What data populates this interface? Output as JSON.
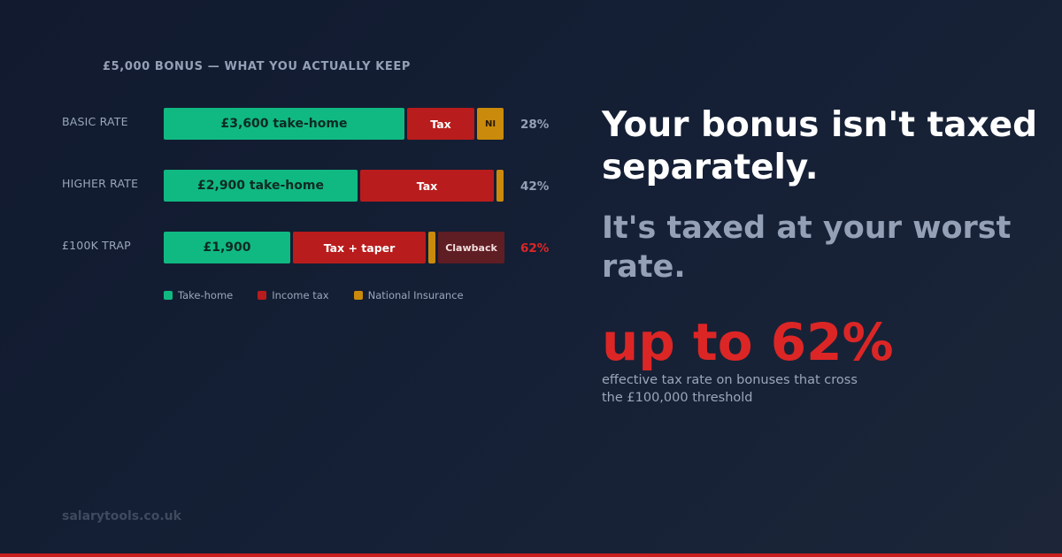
{
  "colors": {
    "take_home": "#10b981",
    "income_tax": "#b91c1c",
    "national_insurance": "#ca8a0b",
    "clawback": "#5f1d24",
    "accent_red": "#dc2626",
    "bottom_bar": "#c81e1e"
  },
  "chart_data": {
    "type": "bar",
    "orientation": "horizontal",
    "stacked": true,
    "title": "£5,000 BONUS — WHAT YOU ACTUALLY KEEP",
    "total": 5000,
    "rows": [
      {
        "label": "BASIC RATE",
        "rate": "28%",
        "rate_color": "#94a0b6",
        "segments": [
          {
            "kind": "take_home",
            "value": 3600,
            "label": "£3,600 take-home"
          },
          {
            "kind": "income_tax",
            "value": 1000,
            "label": "Tax"
          },
          {
            "kind": "national_insurance",
            "value": 400,
            "label": "NI"
          }
        ]
      },
      {
        "label": "HIGHER RATE",
        "rate": "42%",
        "rate_color": "#94a0b6",
        "segments": [
          {
            "kind": "take_home",
            "value": 2900,
            "label": "£2,900 take-home"
          },
          {
            "kind": "income_tax",
            "value": 2000,
            "label": "Tax"
          },
          {
            "kind": "national_insurance",
            "value": 100,
            "label": ""
          }
        ]
      },
      {
        "label": "£100K TRAP",
        "rate": "62%",
        "rate_color": "#dc2626",
        "segments": [
          {
            "kind": "take_home",
            "value": 1900,
            "label": "£1,900"
          },
          {
            "kind": "income_tax",
            "value": 2000,
            "label": "Tax + taper"
          },
          {
            "kind": "national_insurance",
            "value": 100,
            "label": ""
          },
          {
            "kind": "clawback",
            "value": 1000,
            "label": "Clawback"
          }
        ]
      }
    ],
    "legend": [
      {
        "kind": "take_home",
        "label": "Take-home"
      },
      {
        "kind": "income_tax",
        "label": "Income tax"
      },
      {
        "kind": "national_insurance",
        "label": "National Insurance"
      }
    ]
  },
  "headline": "Your bonus isn't taxed separately.",
  "subhead": "It's taxed at your worst rate.",
  "big_stat": "up to 62%",
  "stat_description": "effective tax rate on bonuses that cross the £100,000 threshold",
  "site": "salarytools.co.uk"
}
